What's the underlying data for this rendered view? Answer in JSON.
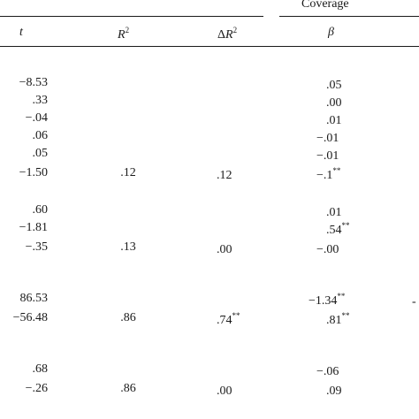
{
  "table": {
    "group_header": "Coverage",
    "columns": {
      "t": "t",
      "r2_base": "R",
      "r2_sup": "2",
      "dr2_delta": "Δ",
      "dr2_base": "R",
      "dr2_sup": "2",
      "beta": "β"
    },
    "rows": [
      {
        "t": "−8.53",
        "r2": "",
        "dr2": "",
        "beta": ".05",
        "beta_sig": ""
      },
      {
        "t": ".33",
        "r2": "",
        "dr2": "",
        "beta": ".00",
        "beta_sig": ""
      },
      {
        "t": "−.04",
        "r2": "",
        "dr2": "",
        "beta": ".01",
        "beta_sig": ""
      },
      {
        "t": ".06",
        "r2": "",
        "dr2": "",
        "beta": "−.01",
        "beta_sig": ""
      },
      {
        "t": ".05",
        "r2": "",
        "dr2": "",
        "beta": "−.01",
        "beta_sig": ""
      },
      {
        "t": "−1.50",
        "r2": ".12",
        "dr2": ".12",
        "dr2_sig": "",
        "beta": "−.1",
        "beta_sig": "**"
      },
      {
        "t": ".60",
        "r2": "",
        "dr2": "",
        "beta": ".01",
        "beta_sig": ""
      },
      {
        "t": "−1.81",
        "r2": "",
        "dr2": "",
        "beta": ".54",
        "beta_sig": "**"
      },
      {
        "t": "−.35",
        "r2": ".13",
        "dr2": ".00",
        "dr2_sig": "",
        "beta": "−.00",
        "beta_sig": ""
      },
      {
        "t": "86.53",
        "r2": "",
        "dr2": "",
        "beta": "−1.34",
        "beta_sig": "**"
      },
      {
        "t": "−56.48",
        "r2": ".86",
        "dr2": ".74",
        "dr2_sig": "**",
        "beta": ".81",
        "beta_sig": "**"
      },
      {
        "t": ".68",
        "r2": "",
        "dr2": "",
        "beta": "−.06",
        "beta_sig": ""
      },
      {
        "t": "−.26",
        "r2": ".86",
        "dr2": ".00",
        "dr2_sig": "",
        "beta": ".09",
        "beta_sig": ""
      }
    ],
    "edge_fragment": "-"
  }
}
